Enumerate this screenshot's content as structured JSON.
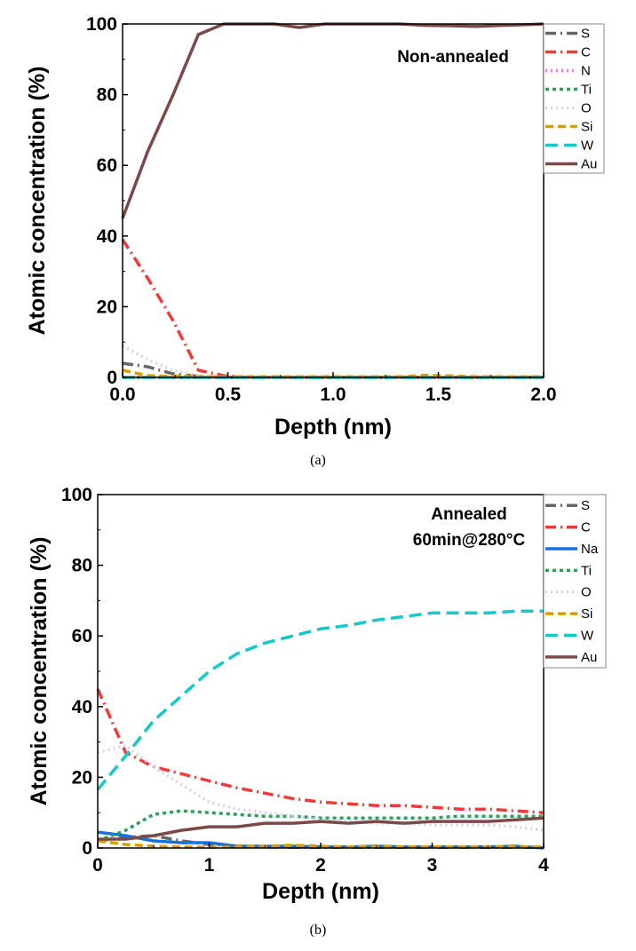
{
  "chart_data": [
    {
      "type": "line",
      "caption": "(a)",
      "annotation": [
        "Non-annealed"
      ],
      "xlabel": "Depth (nm)",
      "ylabel": "Atomic concentration (%)",
      "xlim": [
        0,
        2.0
      ],
      "ylim": [
        0,
        100
      ],
      "xticks": [
        "0.0",
        "0.5",
        "1.0",
        "1.5",
        "2.0"
      ],
      "yticks": [
        "0",
        "20",
        "40",
        "60",
        "80",
        "100"
      ],
      "grid": false,
      "legend_position": "top-right outside",
      "x": [
        0,
        0.12,
        0.24,
        0.36,
        0.48,
        0.6,
        0.72,
        0.84,
        0.96,
        1.08,
        1.2,
        1.32,
        1.44,
        1.56,
        1.68,
        1.8,
        1.92,
        2.0
      ],
      "series": [
        {
          "name": "S",
          "color": "#666666",
          "style": "dash-dot",
          "values": [
            4,
            3,
            1,
            0.3,
            0,
            0,
            0,
            0,
            0,
            0,
            0,
            0,
            0,
            0,
            0,
            0,
            0,
            0
          ]
        },
        {
          "name": "C",
          "color": "#f03a3a",
          "style": "dash-dot",
          "values": [
            39,
            28,
            16,
            2,
            0.5,
            0,
            0,
            0,
            0,
            0,
            0,
            0,
            0,
            0,
            0,
            0,
            0,
            0
          ]
        },
        {
          "name": "N",
          "color": "#ff66ff",
          "style": "dot",
          "values": [
            0,
            0,
            0,
            0,
            0,
            0,
            0,
            0,
            0,
            0,
            0,
            0,
            0,
            0,
            0,
            0,
            0,
            0
          ]
        },
        {
          "name": "Ti",
          "color": "#2aa05a",
          "style": "short-dot",
          "values": [
            0,
            0,
            0,
            0,
            0,
            0,
            0,
            0,
            0,
            0,
            0,
            0,
            0,
            0,
            0,
            0,
            0,
            0
          ]
        },
        {
          "name": "O",
          "color": "#d8d0f0",
          "style": "dot",
          "values": [
            9,
            5,
            2,
            0.5,
            0,
            0,
            0,
            0,
            0,
            0,
            0,
            0,
            0,
            0,
            0,
            0,
            0,
            0
          ]
        },
        {
          "name": "Si",
          "color": "#d4a000",
          "style": "dash",
          "values": [
            2,
            0.5,
            0.3,
            0.2,
            0.2,
            0.2,
            0.2,
            0.2,
            0.2,
            0.2,
            0.2,
            0.2,
            0.6,
            0.4,
            0.2,
            0.2,
            0.2,
            0.2
          ]
        },
        {
          "name": "W",
          "color": "#17c8c8",
          "style": "long-dash",
          "values": [
            0,
            0,
            0,
            0,
            0,
            0,
            0,
            0,
            0,
            0,
            0,
            0,
            0,
            0,
            0,
            0,
            0,
            0
          ]
        },
        {
          "name": "Au",
          "color": "#7b4a48",
          "style": "solid",
          "values": [
            45,
            64,
            80,
            97,
            100,
            100,
            100,
            99,
            100,
            100,
            100,
            100,
            99.6,
            99.5,
            99.3,
            99.6,
            99.8,
            100
          ]
        }
      ]
    },
    {
      "type": "line",
      "caption": "(b)",
      "annotation": [
        "Annealed",
        "60min@280°C"
      ],
      "xlabel": "Depth (nm)",
      "ylabel": "Atomic concentration (%)",
      "xlim": [
        0,
        4
      ],
      "ylim": [
        0,
        100
      ],
      "xticks": [
        "0",
        "1",
        "2",
        "3",
        "4"
      ],
      "yticks": [
        "0",
        "20",
        "40",
        "60",
        "80",
        "100"
      ],
      "grid": false,
      "legend_position": "top-right outside",
      "x": [
        0,
        0.25,
        0.5,
        0.75,
        1,
        1.25,
        1.5,
        1.75,
        2,
        2.25,
        2.5,
        2.75,
        3,
        3.25,
        3.5,
        3.75,
        4
      ],
      "series": [
        {
          "name": "S",
          "color": "#666666",
          "style": "dash-dot",
          "values": [
            2,
            3,
            3.5,
            2,
            1,
            0.5,
            0.3,
            0.2,
            0.2,
            0.2,
            0.2,
            0.2,
            0.2,
            0.2,
            0.2,
            0.2,
            0.2
          ]
        },
        {
          "name": "C",
          "color": "#f03a3a",
          "style": "dash-dot",
          "values": [
            45,
            27,
            23,
            21,
            19,
            17,
            15.5,
            14,
            13,
            12.5,
            12,
            12,
            11.5,
            11,
            11,
            10.5,
            10
          ]
        },
        {
          "name": "Na",
          "color": "#1a6fe0",
          "style": "solid",
          "values": [
            4.5,
            3.5,
            2,
            1.5,
            1.5,
            0.5,
            0.5,
            0.5,
            0.3,
            0.3,
            0.5,
            0.3,
            0.3,
            0.3,
            0.3,
            0.5,
            0
          ]
        },
        {
          "name": "Ti",
          "color": "#2aa05a",
          "style": "short-dot",
          "values": [
            2,
            5,
            9.5,
            10.5,
            10,
            9.5,
            9,
            9,
            8.5,
            8.5,
            8.5,
            8.5,
            8.5,
            9,
            9,
            9,
            9
          ]
        },
        {
          "name": "O",
          "color": "#d8d0f0",
          "style": "dot",
          "values": [
            27,
            29,
            23,
            18,
            13,
            11,
            10,
            9,
            8,
            7.5,
            7,
            7,
            6.5,
            6.5,
            6.5,
            6,
            5
          ]
        },
        {
          "name": "Si",
          "color": "#d4a000",
          "style": "dash",
          "values": [
            2,
            1,
            0.5,
            0.3,
            0.2,
            0.3,
            0.5,
            0.8,
            0.5,
            0.3,
            0.3,
            0.3,
            0.3,
            0.3,
            0.3,
            0.3,
            0.3
          ]
        },
        {
          "name": "W",
          "color": "#17c8c8",
          "style": "long-dash",
          "values": [
            16.5,
            26,
            36,
            43,
            50,
            55,
            58,
            60,
            62,
            63,
            64.5,
            65.5,
            66.5,
            66.5,
            66.5,
            67,
            67
          ]
        },
        {
          "name": "Au",
          "color": "#7b4a48",
          "style": "solid",
          "values": [
            2.5,
            2.5,
            3.5,
            5,
            6,
            6,
            7,
            7,
            7.5,
            7,
            7.5,
            7,
            7.5,
            7.5,
            7.5,
            8,
            8.5
          ]
        }
      ]
    }
  ]
}
